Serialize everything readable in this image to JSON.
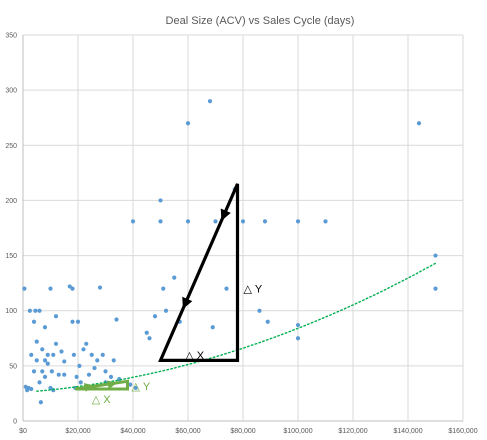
{
  "chart_data": {
    "type": "scatter",
    "title": "Deal Size (ACV) vs Sales Cycle (days)",
    "xlim": [
      0,
      160000
    ],
    "ylim": [
      0,
      350
    ],
    "x_ticks": [
      0,
      20000,
      40000,
      60000,
      80000,
      100000,
      120000,
      140000,
      160000
    ],
    "x_tick_labels": [
      "$0",
      "$20,000",
      "$40,000",
      "$60,000",
      "$80,000",
      "$100,000",
      "$120,000",
      "$140,000",
      "$160,000"
    ],
    "y_ticks": [
      0,
      50,
      100,
      150,
      200,
      250,
      300,
      350
    ],
    "y_tick_labels": [
      "0",
      "50",
      "100",
      "150",
      "200",
      "250",
      "300",
      "350"
    ],
    "grid": true,
    "colors": {
      "points": "#5b9bd5",
      "trendline": "#00b050",
      "large_triangle": "#000000",
      "small_triangle": "#70ad47"
    },
    "points": [
      [
        500,
        120
      ],
      [
        1000,
        31
      ],
      [
        1500,
        28
      ],
      [
        2000,
        30
      ],
      [
        2500,
        100
      ],
      [
        3000,
        60
      ],
      [
        3000,
        29
      ],
      [
        4000,
        90
      ],
      [
        4000,
        45
      ],
      [
        4500,
        100
      ],
      [
        5000,
        72
      ],
      [
        5000,
        55
      ],
      [
        6000,
        100
      ],
      [
        6000,
        35
      ],
      [
        6500,
        17
      ],
      [
        7000,
        65
      ],
      [
        7000,
        45
      ],
      [
        8000,
        85
      ],
      [
        8000,
        55
      ],
      [
        8000,
        40
      ],
      [
        9000,
        60
      ],
      [
        9000,
        52
      ],
      [
        10000,
        120
      ],
      [
        10000,
        30
      ],
      [
        10500,
        45
      ],
      [
        11000,
        60
      ],
      [
        11000,
        28
      ],
      [
        12000,
        95
      ],
      [
        12000,
        70
      ],
      [
        13000,
        42
      ],
      [
        14000,
        63
      ],
      [
        15000,
        54
      ],
      [
        15000,
        42
      ],
      [
        17000,
        122
      ],
      [
        18000,
        90
      ],
      [
        18000,
        120
      ],
      [
        18500,
        60
      ],
      [
        19000,
        30
      ],
      [
        19500,
        40
      ],
      [
        20000,
        90
      ],
      [
        20500,
        50
      ],
      [
        21000,
        35
      ],
      [
        22000,
        65
      ],
      [
        23000,
        70
      ],
      [
        24000,
        42
      ],
      [
        25000,
        60
      ],
      [
        26000,
        48
      ],
      [
        27000,
        55
      ],
      [
        28000,
        121
      ],
      [
        29000,
        60
      ],
      [
        30000,
        35
      ],
      [
        30000,
        45
      ],
      [
        32000,
        40
      ],
      [
        33000,
        55
      ],
      [
        34000,
        92
      ],
      [
        35000,
        38
      ],
      [
        39000,
        33
      ],
      [
        40000,
        181
      ],
      [
        41000,
        30
      ],
      [
        45000,
        80
      ],
      [
        46000,
        75
      ],
      [
        48000,
        95
      ],
      [
        50000,
        200
      ],
      [
        50000,
        181
      ],
      [
        51000,
        120
      ],
      [
        52000,
        100
      ],
      [
        55000,
        130
      ],
      [
        57000,
        90
      ],
      [
        60000,
        181
      ],
      [
        60000,
        270
      ],
      [
        68000,
        290
      ],
      [
        69000,
        85
      ],
      [
        70000,
        181
      ],
      [
        74000,
        120
      ],
      [
        77000,
        210
      ],
      [
        80000,
        181
      ],
      [
        86000,
        100
      ],
      [
        88000,
        181
      ],
      [
        89000,
        90
      ],
      [
        100000,
        181
      ],
      [
        100000,
        75
      ],
      [
        100000,
        87
      ],
      [
        110000,
        181
      ],
      [
        144000,
        270
      ],
      [
        150000,
        150
      ],
      [
        150000,
        120
      ]
    ],
    "trendline": {
      "type": "polynomial",
      "style": "dotted",
      "x": [
        5000,
        150000
      ],
      "y": [
        27,
        143
      ]
    },
    "annotations": {
      "large_triangle": {
        "vertices": [
          [
            78000,
            215
          ],
          [
            50000,
            55
          ],
          [
            78000,
            55
          ]
        ],
        "dx_label": "△ X",
        "dy_label": "△ Y"
      },
      "small_triangle": {
        "vertices": [
          [
            19000,
            29
          ],
          [
            38000,
            36
          ],
          [
            38000,
            29
          ]
        ],
        "dx_label": "△ X",
        "dy_label": "△ Y"
      }
    }
  }
}
